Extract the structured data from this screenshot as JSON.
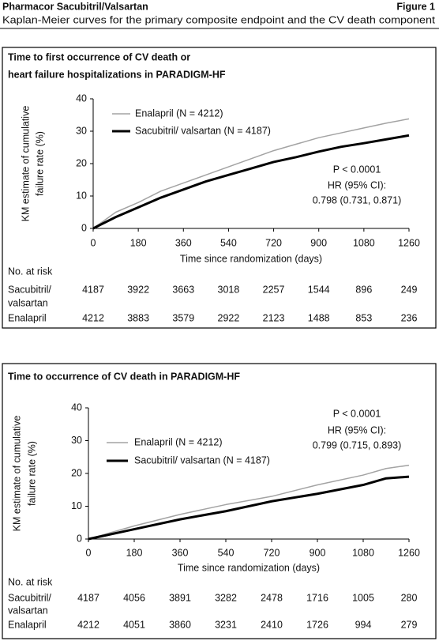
{
  "header": {
    "title": "Pharmacor Sacubitril/Valsartan",
    "figure": "Figure 1",
    "subtitle": "Kaplan-Meier curves for the primary composite endpoint and the CV death component"
  },
  "chart_data": [
    {
      "type": "line",
      "title": [
        "Time to first occurrence of CV death or",
        "heart failure hospitalizations in PARADIGM-HF"
      ],
      "x_label": "Time since randomization (days)",
      "y_label": [
        "KM estimate of cumulative",
        "failure rate (%)"
      ],
      "xlim": [
        0,
        1260
      ],
      "xticks": [
        0,
        180,
        360,
        540,
        720,
        900,
        1080,
        1260
      ],
      "ylim": [
        0,
        40
      ],
      "yticks": [
        0,
        10,
        20,
        30,
        40
      ],
      "x": [
        0,
        90,
        180,
        270,
        360,
        450,
        540,
        630,
        720,
        810,
        900,
        990,
        1080,
        1170,
        1260
      ],
      "series": [
        {
          "name": "Enalapril (N = 4212)",
          "color": "#a3a3a3",
          "line_width": 1.5,
          "values": [
            0,
            5,
            8,
            11.5,
            14,
            16.5,
            19,
            21.5,
            24,
            26,
            28,
            29.5,
            31,
            32.5,
            33.8
          ]
        },
        {
          "name": "Sacubitril/ valsartan (N = 4187)",
          "color": "#000000",
          "line_width": 3,
          "values": [
            0,
            3.5,
            6.5,
            9.5,
            12,
            14.5,
            16.5,
            18.5,
            20.5,
            22,
            23.7,
            25.2,
            26.3,
            27.5,
            28.7
          ]
        }
      ],
      "annotation": [
        "P < 0.0001",
        "HR (95% CI):",
        "0.798 (0.731, 0.871)"
      ],
      "at_risk": {
        "label": "No. at risk",
        "rows": [
          {
            "name": [
              "Sacubitril/",
              "valsartan"
            ],
            "values": [
              4187,
              3922,
              3663,
              3018,
              2257,
              1544,
              896,
              249
            ]
          },
          {
            "name": [
              "Enalapril"
            ],
            "values": [
              4212,
              3883,
              3579,
              2922,
              2123,
              1488,
              853,
              236
            ]
          }
        ]
      }
    },
    {
      "type": "line",
      "title": [
        "Time to occurrence of CV death in PARADIGM-HF"
      ],
      "x_label": "Time since randomization (days)",
      "y_label": [
        "KM estimate of cumulative",
        "failure rate (%)"
      ],
      "xlim": [
        0,
        1260
      ],
      "xticks": [
        0,
        180,
        360,
        540,
        720,
        900,
        1080,
        1260
      ],
      "ylim": [
        0,
        40
      ],
      "yticks": [
        0,
        10,
        20,
        30,
        40
      ],
      "x": [
        0,
        180,
        360,
        540,
        720,
        900,
        1080,
        1170,
        1260
      ],
      "series": [
        {
          "name": "Enalapril (N = 4212)",
          "color": "#a3a3a3",
          "line_width": 1.5,
          "values": [
            0,
            4,
            7.5,
            10.5,
            13,
            16.5,
            19.5,
            21.5,
            22.5
          ]
        },
        {
          "name": "Sacubitril/ valsartan (N = 4187)",
          "color": "#000000",
          "line_width": 3,
          "values": [
            0,
            3,
            6,
            8.5,
            11.5,
            13.8,
            16.5,
            18.5,
            19
          ]
        }
      ],
      "annotation": [
        "P < 0.0001",
        "HR (95% CI):",
        "0.799 (0.715, 0.893)"
      ],
      "at_risk": {
        "label": "No. at risk",
        "rows": [
          {
            "name": [
              "Sacubitril/",
              "valsartan"
            ],
            "values": [
              4187,
              4056,
              3891,
              3282,
              2478,
              1716,
              1005,
              280
            ]
          },
          {
            "name": [
              "Enalapril"
            ],
            "values": [
              4212,
              4051,
              3860,
              3231,
              2410,
              1726,
              994,
              279
            ]
          }
        ]
      }
    }
  ]
}
